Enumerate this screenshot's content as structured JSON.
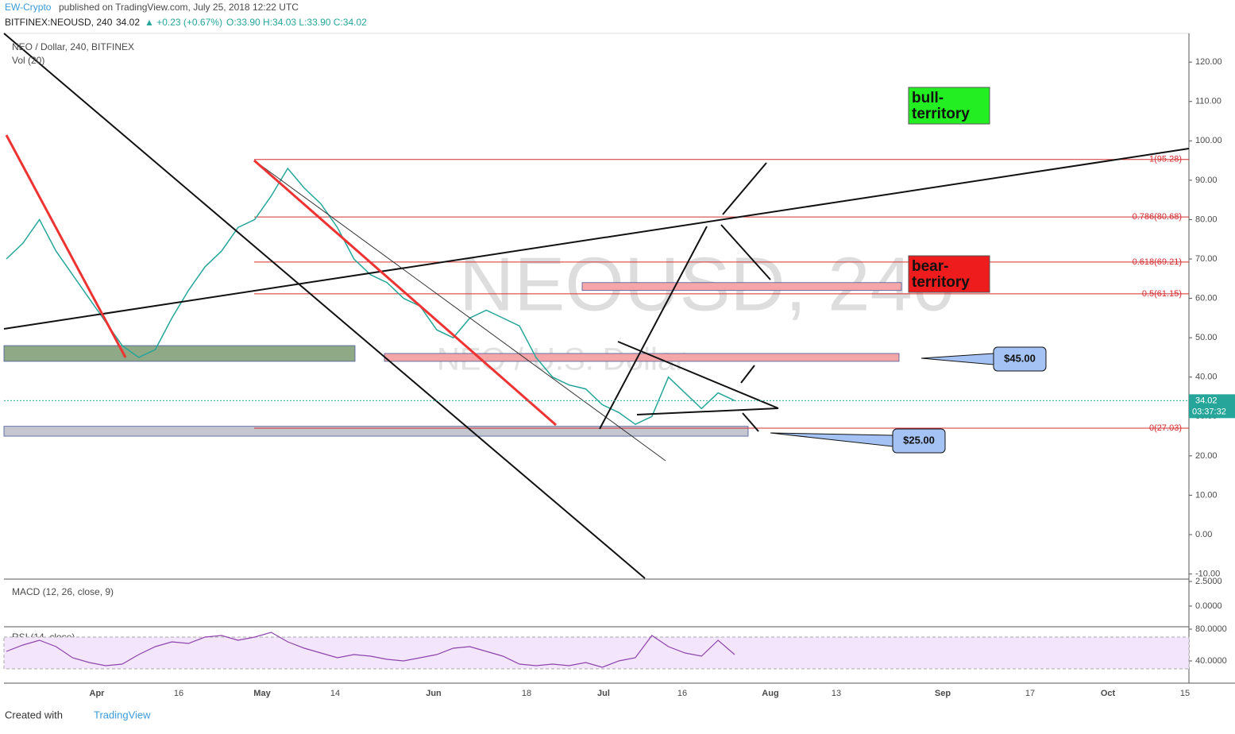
{
  "header": {
    "author": "EW-Crypto",
    "published": "published on TradingView.com, July 25, 2018 12:22 UTC",
    "symbol": "BITFINEX:NEOUSD, 240",
    "last": "34.02",
    "change": "▲ +0.23 (+0.67%)",
    "ohlc": "O:33.90 H:34.03 L:33.90 C:34.02"
  },
  "chart_data": {
    "type": "line",
    "title": "NEO / Dollar, 240, BITFINEX",
    "volume_label": "Vol (20)",
    "watermark": "NEOUSD, 240",
    "watermark_sub": "NEO / U.S. Dollar",
    "color": "#26a69a",
    "values": [
      70,
      74,
      80,
      72,
      66,
      60,
      54,
      48,
      45,
      47,
      55,
      62,
      68,
      72,
      78,
      80,
      86,
      93,
      88,
      84,
      78,
      70,
      66,
      64,
      60,
      58,
      52,
      50,
      55,
      57,
      55,
      53,
      45,
      40,
      38,
      37,
      33,
      31,
      28,
      30,
      40,
      36,
      32,
      36,
      34.02
    ],
    "ylim": [
      -11.1,
      127.3
    ],
    "yticks": [
      {
        "value": 120,
        "label": "120.00"
      },
      {
        "value": 110,
        "label": "110.00"
      },
      {
        "value": 100,
        "label": "100.00"
      },
      {
        "value": 90,
        "label": "90.00"
      },
      {
        "value": 80,
        "label": "80.00"
      },
      {
        "value": 70,
        "label": "70.00"
      },
      {
        "value": 60,
        "label": "60.00"
      },
      {
        "value": 50,
        "label": "50.00"
      },
      {
        "value": 40,
        "label": "40.00"
      },
      {
        "value": 30,
        "label": "30.00"
      },
      {
        "value": 20,
        "label": "20.00"
      },
      {
        "value": 10,
        "label": "10.00"
      },
      {
        "value": 0,
        "label": "0.00"
      },
      {
        "value": -10,
        "label": "-10.00"
      }
    ],
    "current_price": {
      "value": 34.02,
      "label": "34.02",
      "countdown": "03:37:32"
    },
    "fib_levels": [
      {
        "value": 95.28,
        "label": "1(95.28)"
      },
      {
        "value": 80.68,
        "label": "0.786(80.68)"
      },
      {
        "value": 69.21,
        "label": "0.618(69.21)"
      },
      {
        "value": 61.15,
        "label": "0.5(61.15)"
      },
      {
        "value": 27.03,
        "label": "0(27.03)"
      }
    ],
    "zones": [
      {
        "low": 62,
        "high": 64,
        "color": "#f4a6a8"
      },
      {
        "low": 44,
        "high": 46,
        "color": "#f4a6a8"
      },
      {
        "low": 44,
        "high": 48,
        "color": "#8fa886"
      },
      {
        "low": 25,
        "high": 27.5,
        "color": "#c4c6d0"
      }
    ],
    "callouts": [
      {
        "label": "$45.00"
      },
      {
        "label": "$25.00"
      }
    ],
    "territory": [
      {
        "label": "bull-\nterritory",
        "color": "#22ee22"
      },
      {
        "label": "bear-\nterritory",
        "color": "#ee1c1c"
      }
    ],
    "macd": {
      "label": "MACD (12, 26, close, 9)",
      "ylim": [
        -2.02,
        2.66
      ],
      "yticks": [
        {
          "value": 2.5,
          "label": "2.5000"
        },
        {
          "value": 0,
          "label": "0.0000"
        }
      ]
    },
    "rsi": {
      "label": "RSI (14, close)",
      "color": "#8e44ad",
      "ylim": [
        14,
        82
      ],
      "bands": [
        30,
        70
      ],
      "yticks": [
        {
          "value": 80,
          "label": "80.0000"
        },
        {
          "value": 40,
          "label": "40.0000"
        }
      ],
      "values": [
        52,
        60,
        66,
        58,
        44,
        38,
        34,
        36,
        48,
        58,
        64,
        62,
        70,
        72,
        66,
        70,
        76,
        64,
        56,
        50,
        44,
        48,
        46,
        42,
        40,
        44,
        48,
        56,
        58,
        52,
        46,
        36,
        34,
        36,
        34,
        38,
        32,
        40,
        44,
        72,
        58,
        50,
        46,
        66,
        48
      ]
    },
    "xticks": [
      "Apr",
      "16",
      "May",
      "14",
      "Jun",
      "18",
      "Jul",
      "16",
      "Aug",
      "13",
      "Sep",
      "17",
      "Oct",
      "15"
    ]
  },
  "footer": {
    "created": "Created with",
    "brand": "TradingView"
  }
}
